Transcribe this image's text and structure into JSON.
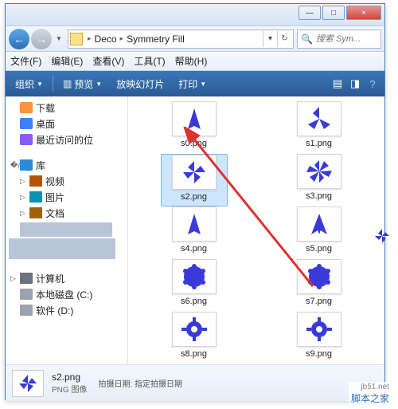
{
  "titlebar": {
    "min": "—",
    "max": "□",
    "close": "×"
  },
  "nav": {
    "back": "←",
    "fwd": "→",
    "segments": [
      "Deco",
      "Symmetry Fill"
    ],
    "refresh": "↻",
    "search_placeholder": "搜索 Sym..."
  },
  "menus": {
    "file": "文件(F)",
    "edit": "编辑(E)",
    "view": "查看(V)",
    "tools": "工具(T)",
    "help": "帮助(H)"
  },
  "toolbar": {
    "organize": "组织",
    "preview": "预览",
    "slideshow": "放映幻灯片",
    "print": "打印"
  },
  "sidebar": {
    "downloads": "下载",
    "desktop": "桌面",
    "recent": "最近访问的位",
    "library": "库",
    "videos": "视频",
    "pictures": "图片",
    "documents": "文档",
    "computer": "计算机",
    "drive_c": "本地磁盘 (C:)",
    "drive_d": "软件 (D:)"
  },
  "files": [
    {
      "name": "s0.png",
      "kind": "tri"
    },
    {
      "name": "s1.png",
      "kind": "fan3"
    },
    {
      "name": "s2.png",
      "kind": "fan4"
    },
    {
      "name": "s3.png",
      "kind": "fan6"
    },
    {
      "name": "s4.png",
      "kind": "tri"
    },
    {
      "name": "s5.png",
      "kind": "tri2"
    },
    {
      "name": "s6.png",
      "kind": "blob"
    },
    {
      "name": "s7.png",
      "kind": "blob"
    },
    {
      "name": "s8.png",
      "kind": "gear"
    },
    {
      "name": "s9.png",
      "kind": "gear"
    }
  ],
  "selected_index": 2,
  "details": {
    "name": "s2.png",
    "type": "PNG 图像",
    "meta_label": "拍摄日期:",
    "meta_value": "指定拍摄日期"
  },
  "colors": {
    "shape": "#3a3ad8",
    "arrow": "#e03030"
  },
  "watermark": "脚本之家",
  "watermark_url": "jb51.net"
}
